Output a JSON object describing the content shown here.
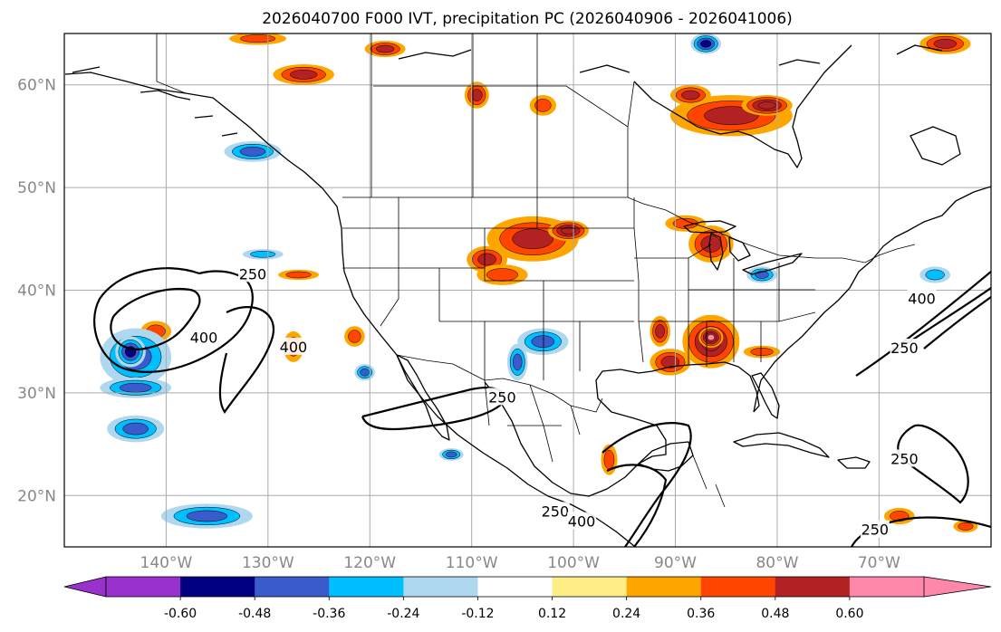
{
  "figure": {
    "title": "2026040700 F000 IVT, precipitation PC (2026040906 - 2026041006)"
  },
  "map": {
    "projection": "equirectangular",
    "lon_range": [
      -150,
      -59
    ],
    "lat_range": [
      15,
      65
    ],
    "lat_gridlines": [
      20,
      30,
      40,
      50,
      60
    ],
    "lon_gridlines": [
      -140,
      -130,
      -120,
      -110,
      -100,
      -90,
      -80,
      -70
    ],
    "lat_labels": [
      "20°N",
      "30°N",
      "40°N",
      "50°N",
      "60°N"
    ],
    "lon_labels": [
      "140°W",
      "130°W",
      "120°W",
      "110°W",
      "100°W",
      "90°W",
      "80°W",
      "70°W"
    ]
  },
  "ivt_contours": {
    "levels": [
      250,
      400
    ],
    "labels": [
      {
        "text": "250",
        "lon": -131.5,
        "lat": 41.6
      },
      {
        "text": "400",
        "lon": -136.3,
        "lat": 35.4
      },
      {
        "text": "400",
        "lon": -127.5,
        "lat": 34.5
      },
      {
        "text": "250",
        "lon": -107.0,
        "lat": 29.6
      },
      {
        "text": "400",
        "lon": -65.8,
        "lat": 39.2
      },
      {
        "text": "250",
        "lon": -67.5,
        "lat": 34.4
      },
      {
        "text": "250",
        "lon": -67.5,
        "lat": 23.6
      },
      {
        "text": "250",
        "lon": -70.4,
        "lat": 16.7
      },
      {
        "text": "250",
        "lon": -101.8,
        "lat": 18.5
      },
      {
        "text": "400",
        "lon": -99.2,
        "lat": 17.5
      }
    ]
  },
  "colorbar": {
    "ticks": [
      "-0.60",
      "-0.48",
      "-0.36",
      "-0.24",
      "-0.12",
      "0.12",
      "0.24",
      "0.36",
      "0.48",
      "0.60"
    ],
    "colors": {
      "under": "#9932CC",
      "c1": "#000080",
      "c2": "#3A5BCC",
      "c3": "#00BFFF",
      "c4": "#ADD8F0",
      "c5": "#FFFFFF",
      "c6": "#FFEE88",
      "c7": "#FFA500",
      "c8": "#FF4500",
      "c9": "#B22222",
      "over": "#FF88AA"
    }
  },
  "precip_blobs": [
    {
      "lon": -104.0,
      "lat": 45.0,
      "rx": 4.5,
      "ry": 2.2,
      "level": 0.42
    },
    {
      "lon": -100.5,
      "lat": 45.8,
      "rx": 2.0,
      "ry": 1.0,
      "level": 0.5
    },
    {
      "lon": -108.5,
      "lat": 43.0,
      "rx": 2.0,
      "ry": 1.3,
      "level": 0.4
    },
    {
      "lon": -107.0,
      "lat": 41.5,
      "rx": 2.5,
      "ry": 1.0,
      "level": 0.35
    },
    {
      "lon": -86.5,
      "lat": 35.0,
      "rx": 2.8,
      "ry": 2.6,
      "level": 0.5
    },
    {
      "lon": -86.5,
      "lat": 35.4,
      "rx": 1.2,
      "ry": 1.0,
      "level": 0.62
    },
    {
      "lon": -90.5,
      "lat": 33.0,
      "rx": 2.0,
      "ry": 1.3,
      "level": 0.38
    },
    {
      "lon": -91.5,
      "lat": 36.0,
      "rx": 1.0,
      "ry": 1.5,
      "level": 0.38
    },
    {
      "lon": -86.5,
      "lat": 44.5,
      "rx": 2.2,
      "ry": 1.8,
      "level": 0.45
    },
    {
      "lon": -89.0,
      "lat": 46.5,
      "rx": 2.0,
      "ry": 0.8,
      "level": 0.35
    },
    {
      "lon": -84.5,
      "lat": 57.0,
      "rx": 6.0,
      "ry": 2.0,
      "level": 0.42
    },
    {
      "lon": -81.0,
      "lat": 58.0,
      "rx": 2.5,
      "ry": 1.0,
      "level": 0.52
    },
    {
      "lon": -88.5,
      "lat": 59.0,
      "rx": 2.0,
      "ry": 1.0,
      "level": 0.4
    },
    {
      "lon": -126.5,
      "lat": 61.0,
      "rx": 3.0,
      "ry": 1.0,
      "level": 0.38
    },
    {
      "lon": -118.5,
      "lat": 63.5,
      "rx": 2.0,
      "ry": 0.8,
      "level": 0.38
    },
    {
      "lon": -109.5,
      "lat": 59.0,
      "rx": 1.2,
      "ry": 1.3,
      "level": 0.38
    },
    {
      "lon": -103.0,
      "lat": 58.0,
      "rx": 1.3,
      "ry": 1.0,
      "level": 0.35
    },
    {
      "lon": -131.0,
      "lat": 64.5,
      "rx": 2.8,
      "ry": 0.6,
      "level": 0.36
    },
    {
      "lon": -63.5,
      "lat": 64.0,
      "rx": 2.5,
      "ry": 1.0,
      "level": 0.38
    },
    {
      "lon": -141.0,
      "lat": 36.0,
      "rx": 1.5,
      "ry": 1.0,
      "level": 0.35
    },
    {
      "lon": -127.5,
      "lat": 34.5,
      "rx": 1.0,
      "ry": 1.5,
      "level": 0.35
    },
    {
      "lon": -127.0,
      "lat": 41.5,
      "rx": 2.0,
      "ry": 0.5,
      "level": 0.35
    },
    {
      "lon": -121.5,
      "lat": 35.5,
      "rx": 1.0,
      "ry": 1.0,
      "level": 0.36
    },
    {
      "lon": -96.5,
      "lat": 23.5,
      "rx": 0.8,
      "ry": 1.5,
      "level": 0.36
    },
    {
      "lon": -81.5,
      "lat": 34.0,
      "rx": 1.8,
      "ry": 0.6,
      "level": 0.36
    },
    {
      "lon": -68.0,
      "lat": 18.0,
      "rx": 1.5,
      "ry": 0.8,
      "level": 0.36
    },
    {
      "lon": -61.5,
      "lat": 17.0,
      "rx": 1.2,
      "ry": 0.6,
      "level": 0.36
    },
    {
      "lon": -143.0,
      "lat": 33.5,
      "rx": 3.5,
      "ry": 2.8,
      "level": -0.46
    },
    {
      "lon": -143.5,
      "lat": 34.0,
      "rx": 1.5,
      "ry": 1.5,
      "level": -0.55
    },
    {
      "lon": -143.0,
      "lat": 30.5,
      "rx": 3.5,
      "ry": 1.0,
      "level": -0.46
    },
    {
      "lon": -143.0,
      "lat": 26.5,
      "rx": 2.8,
      "ry": 1.3,
      "level": -0.46
    },
    {
      "lon": -136.0,
      "lat": 18.0,
      "rx": 4.5,
      "ry": 1.2,
      "level": -0.45
    },
    {
      "lon": -131.5,
      "lat": 53.5,
      "rx": 2.8,
      "ry": 1.0,
      "level": -0.45
    },
    {
      "lon": -130.5,
      "lat": 43.5,
      "rx": 2.0,
      "ry": 0.5,
      "level": -0.3
    },
    {
      "lon": -103.0,
      "lat": 35.0,
      "rx": 2.5,
      "ry": 1.3,
      "level": -0.4
    },
    {
      "lon": -105.5,
      "lat": 33.0,
      "rx": 1.0,
      "ry": 1.8,
      "level": -0.4
    },
    {
      "lon": -81.5,
      "lat": 41.5,
      "rx": 1.5,
      "ry": 0.8,
      "level": -0.45
    },
    {
      "lon": -87.0,
      "lat": 64.0,
      "rx": 1.5,
      "ry": 1.0,
      "level": -0.58
    },
    {
      "lon": -120.5,
      "lat": 32.0,
      "rx": 1.0,
      "ry": 0.8,
      "level": -0.4
    },
    {
      "lon": -112.0,
      "lat": 24.0,
      "rx": 1.2,
      "ry": 0.6,
      "level": -0.4
    },
    {
      "lon": -64.5,
      "lat": 41.5,
      "rx": 1.5,
      "ry": 0.8,
      "level": -0.35
    }
  ]
}
